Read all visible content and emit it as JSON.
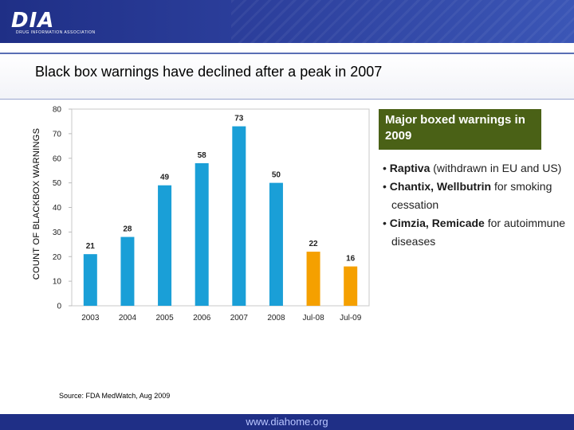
{
  "header": {
    "logo_text": "DIA",
    "logo_subtitle": "DRUG INFORMATION ASSOCIATION"
  },
  "slide": {
    "title": "Black box warnings have declined after a peak in 2007"
  },
  "chart_data": {
    "type": "bar",
    "title": "",
    "xlabel": "",
    "ylabel": "COUNT OF BLACKBOX WARNINGS",
    "ylim": [
      0,
      80
    ],
    "yticks": [
      0,
      10,
      20,
      30,
      40,
      50,
      60,
      70,
      80
    ],
    "categories": [
      "2003",
      "2004",
      "2005",
      "2006",
      "2007",
      "2008",
      "Jul-08",
      "Jul-09"
    ],
    "values": [
      21,
      28,
      49,
      58,
      73,
      50,
      22,
      16
    ],
    "bar_colors": [
      "#1a9fd7",
      "#1a9fd7",
      "#1a9fd7",
      "#1a9fd7",
      "#1a9fd7",
      "#1a9fd7",
      "#f5a000",
      "#f5a000"
    ],
    "grid": false,
    "data_labels": true
  },
  "callout": {
    "text": "Major boxed warnings in 2009"
  },
  "bullets": [
    {
      "bold": "Raptiva",
      "text": " (withdrawn in EU and US)"
    },
    {
      "bold": "Chantix, Wellbutrin",
      "text": " for smoking cessation"
    },
    {
      "bold": "Cimzia, Remicade",
      "text": " for autoimmune diseases"
    }
  ],
  "source": "Source: FDA MedWatch, Aug 2009",
  "footer": {
    "url": "www.diahome.org"
  }
}
